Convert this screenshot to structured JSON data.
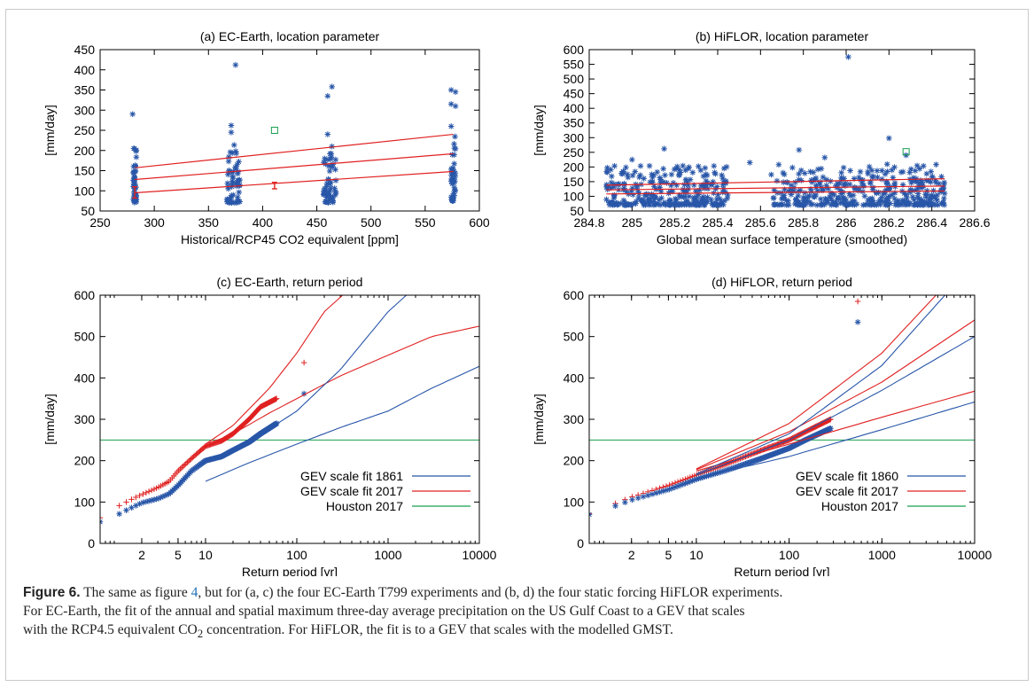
{
  "colors": {
    "blue": "#2856a8",
    "red": "#e02020",
    "green": "#18a050",
    "axis": "#000000"
  },
  "caption": {
    "label": "Figure 6.",
    "line1_a": " The same as figure ",
    "line1_ref": "4",
    "line1_b": ", but for (a, c) the four EC-Earth T799 experiments and (b, d) the four static forcing HiFLOR experiments.",
    "line2": "For EC-Earth, the fit of the annual and spatial maximum three-day average precipitation on the US Gulf Coast to a GEV that scales",
    "line3_a": "with the RCP4.5 equivalent CO",
    "line3_sub": "2",
    "line3_b": " concentration. For HiFLOR, the fit is to a GEV that scales with the modelled GMST."
  },
  "chart_data": [
    {
      "id": "a",
      "type": "scatter",
      "title": "(a) EC-Earth, location parameter",
      "xlabel": "Historical/RCP45 CO2 equivalent [ppm]",
      "ylabel": "[mm/day]",
      "xlim": [
        250,
        600
      ],
      "ylim": [
        50,
        450
      ],
      "xticks": [
        250,
        300,
        350,
        400,
        450,
        500,
        550,
        600
      ],
      "yticks": [
        50,
        100,
        150,
        200,
        250,
        300,
        350,
        400,
        450
      ],
      "clusters": [
        {
          "x": 282,
          "n": 45,
          "dx": 1.5,
          "min": 70,
          "max": 215,
          "outliers": [
            290
          ]
        },
        {
          "x": 373,
          "n": 55,
          "dx": 6,
          "min": 70,
          "max": 220,
          "outliers": [
            262,
            412,
            245
          ]
        },
        {
          "x": 462,
          "n": 55,
          "dx": 6,
          "min": 70,
          "max": 200,
          "outliers": [
            335,
            358,
            240,
            210
          ]
        },
        {
          "x": 576,
          "n": 45,
          "dx": 2,
          "min": 75,
          "max": 245,
          "outliers": [
            350,
            345,
            315,
            310,
            260
          ]
        }
      ],
      "fit_lines": [
        {
          "x": [
            282,
            576
          ],
          "y": [
            95,
            148
          ]
        },
        {
          "x": [
            282,
            576
          ],
          "y": [
            128,
            192
          ]
        },
        {
          "x": [
            282,
            576
          ],
          "y": [
            157,
            240
          ]
        }
      ],
      "error_bars": [
        {
          "x": 282,
          "y": 97,
          "low": 82,
          "high": 110
        },
        {
          "x": 411,
          "y": 113,
          "low": 105,
          "high": 121
        }
      ],
      "observed": {
        "x": 411,
        "y": 250,
        "label": "Houston 2017"
      }
    },
    {
      "id": "b",
      "type": "scatter",
      "title": "(b) HiFLOR, location parameter",
      "xlabel": "Global mean surface temperature (smoothed)",
      "ylabel": "[mm/day]",
      "xlim": [
        284.8,
        286.6
      ],
      "ylim": [
        50,
        600
      ],
      "xticks": [
        284.8,
        285,
        285.2,
        285.4,
        285.6,
        285.8,
        286,
        286.2,
        286.4,
        286.6
      ],
      "yticks": [
        50,
        100,
        150,
        200,
        250,
        300,
        350,
        400,
        450,
        500,
        550,
        600
      ],
      "ranges": [
        {
          "x": [
            284.88,
            285.45
          ],
          "n": 300,
          "min": 70,
          "max": 205
        },
        {
          "x": [
            285.65,
            286.46
          ],
          "n": 380,
          "min": 70,
          "max": 210
        }
      ],
      "outliers": [
        {
          "x": 286.01,
          "y": 575
        },
        {
          "x": 286.2,
          "y": 298
        },
        {
          "x": 285.15,
          "y": 262
        },
        {
          "x": 285.78,
          "y": 258
        },
        {
          "x": 285.0,
          "y": 225
        },
        {
          "x": 286.28,
          "y": 240
        },
        {
          "x": 285.9,
          "y": 232
        },
        {
          "x": 285.55,
          "y": 215
        }
      ],
      "fit_lines": [
        {
          "x": [
            284.88,
            286.46
          ],
          "y": [
            108,
            118
          ]
        },
        {
          "x": [
            284.88,
            286.46
          ],
          "y": [
            122,
            135
          ]
        },
        {
          "x": [
            284.88,
            286.46
          ],
          "y": [
            138,
            160
          ]
        }
      ],
      "observed": {
        "x": 286.28,
        "y": 252,
        "label": "Houston 2017"
      }
    },
    {
      "id": "c",
      "type": "line",
      "title": "(c) EC-Earth, return period",
      "xlabel": "Return period [yr]",
      "ylabel": "[mm/day]",
      "xscale": "log",
      "xlim": [
        0.7,
        10000
      ],
      "ylim": [
        0,
        600
      ],
      "xticks": [
        2,
        5,
        10,
        100,
        1000,
        10000
      ],
      "yticks": [
        0,
        100,
        200,
        300,
        400,
        500,
        600
      ],
      "houston_level": 250,
      "legend": [
        {
          "label": "GEV scale fit 1861",
          "color": "#2856a8"
        },
        {
          "label": "GEV scale fit 2017",
          "color": "#e02020"
        },
        {
          "label": "Houston 2017",
          "color": "#18a050"
        }
      ],
      "legend_position": "bottom-right",
      "series": [
        {
          "name": "GEV scale fit 2017",
          "kind": "points",
          "x": [
            0.7,
            1,
            1.5,
            2,
            3,
            4,
            5,
            7,
            10,
            15,
            20,
            30,
            40,
            60,
            120
          ],
          "y": [
            62,
            85,
            105,
            118,
            135,
            150,
            175,
            205,
            235,
            248,
            265,
            300,
            330,
            350,
            437
          ]
        },
        {
          "name": "GEV scale fit 1861",
          "kind": "points",
          "x": [
            0.7,
            1,
            1.5,
            2,
            3,
            4,
            5,
            7,
            10,
            15,
            20,
            30,
            40,
            60,
            120
          ],
          "y": [
            52,
            65,
            85,
            98,
            108,
            120,
            140,
            175,
            200,
            210,
            225,
            245,
            265,
            290,
            362
          ]
        },
        {
          "name": "GEV scale fit 2017",
          "kind": "fit",
          "x": [
            10,
            20,
            50,
            100,
            300,
            1000,
            3000,
            10000
          ],
          "y": [
            235,
            265,
            315,
            350,
            405,
            455,
            500,
            525
          ]
        },
        {
          "name": "GEV scale fit 2017",
          "kind": "fit",
          "x": [
            10,
            20,
            50,
            100,
            200,
            400
          ],
          "y": [
            240,
            285,
            375,
            460,
            560,
            620
          ]
        },
        {
          "name": "GEV scale fit 1861",
          "kind": "fit",
          "x": [
            10,
            30,
            100,
            300,
            1000,
            3000,
            10000
          ],
          "y": [
            150,
            195,
            240,
            280,
            320,
            375,
            428
          ]
        },
        {
          "name": "GEV scale fit 1861",
          "kind": "fit",
          "x": [
            10,
            30,
            100,
            300,
            1000,
            2000
          ],
          "y": [
            195,
            245,
            320,
            420,
            560,
            620
          ]
        }
      ]
    },
    {
      "id": "d",
      "type": "line",
      "title": "(d) HiFLOR, return period",
      "xlabel": "Return period [yr]",
      "ylabel": "[mm/day]",
      "xscale": "log",
      "xlim": [
        0.7,
        10000
      ],
      "ylim": [
        0,
        600
      ],
      "xticks": [
        2,
        5,
        10,
        100,
        1000,
        10000
      ],
      "yticks": [
        0,
        100,
        200,
        300,
        400,
        500,
        600
      ],
      "houston_level": 250,
      "legend": [
        {
          "label": "GEV scale fit 1860",
          "color": "#2856a8"
        },
        {
          "label": "GEV scale fit 2017",
          "color": "#e02020"
        },
        {
          "label": "Houston 2017",
          "color": "#18a050"
        }
      ],
      "legend_position": "bottom-right",
      "series": [
        {
          "name": "GEV scale fit 2017",
          "kind": "points",
          "x": [
            0.7,
            1,
            2,
            5,
            10,
            20,
            50,
            100,
            150,
            280,
            550
          ],
          "y": [
            72,
            85,
            112,
            140,
            165,
            190,
            225,
            250,
            270,
            300,
            585
          ]
        },
        {
          "name": "GEV scale fit 1860",
          "kind": "points",
          "x": [
            0.7,
            1,
            2,
            5,
            10,
            20,
            50,
            100,
            150,
            280,
            550
          ],
          "y": [
            70,
            80,
            105,
            130,
            155,
            175,
            205,
            230,
            250,
            278,
            535
          ]
        },
        {
          "name": "GEV scale fit 2017",
          "kind": "fit",
          "x": [
            10,
            100,
            1000,
            10000
          ],
          "y": [
            175,
            240,
            305,
            368
          ]
        },
        {
          "name": "GEV scale fit 2017",
          "kind": "fit",
          "x": [
            10,
            100,
            1000,
            10000
          ],
          "y": [
            180,
            290,
            460,
            700
          ]
        },
        {
          "name": "GEV scale fit 2017",
          "kind": "fit",
          "x": [
            10,
            100,
            1000,
            10000
          ],
          "y": [
            178,
            270,
            390,
            540
          ]
        },
        {
          "name": "GEV scale fit 1860",
          "kind": "fit",
          "x": [
            10,
            100,
            1000,
            10000
          ],
          "y": [
            158,
            210,
            275,
            342
          ]
        },
        {
          "name": "GEV scale fit 1860",
          "kind": "fit",
          "x": [
            10,
            100,
            1000,
            10000
          ],
          "y": [
            165,
            250,
            370,
            500
          ]
        },
        {
          "name": "GEV scale fit 1860",
          "kind": "fit",
          "x": [
            10,
            100,
            1000,
            10000
          ],
          "y": [
            168,
            265,
            430,
            680
          ]
        }
      ]
    }
  ]
}
